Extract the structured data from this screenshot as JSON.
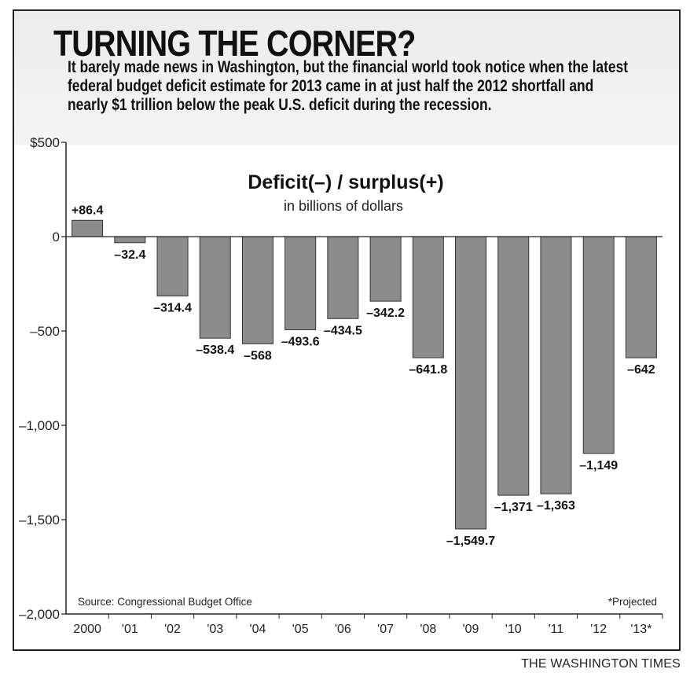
{
  "title": "TURNING THE CORNER?",
  "subtitle": "It barely made news in Washington, but the financial world took notice when the latest federal budget deficit estimate for 2013 came in at just half the 2012 shortfall and nearly $1 trillion below the peak U.S. deficit during the recession.",
  "credit": "THE WASHINGTON TIMES",
  "chart_data": {
    "type": "bar",
    "title": "Deficit(–) / surplus(+)",
    "subtitle": "in billions of dollars",
    "categories": [
      "2000",
      "'01",
      "'02",
      "'03",
      "'04",
      "'05",
      "'06",
      "'07",
      "'08",
      "'09",
      "'10",
      "'11",
      "'12",
      "'13*"
    ],
    "values": [
      86.4,
      -32.4,
      -314.4,
      -538.4,
      -568,
      -493.6,
      -434.5,
      -342.2,
      -641.8,
      -1549.7,
      -1371,
      -1363,
      -1149,
      -642
    ],
    "value_labels": [
      "+86.4",
      "–32.4",
      "–314.4",
      "–538.4",
      "–568",
      "–493.6",
      "–434.5",
      "–342.2",
      "–641.8",
      "–1,549.7",
      "–1,371",
      "–1,363",
      "–1,149",
      "–642"
    ],
    "yticks": [
      500,
      0,
      -500,
      -1000,
      -1500,
      -2000
    ],
    "ytick_labels": [
      "$500",
      "0",
      "–500",
      "–1,000",
      "–1,500",
      "–2,000"
    ],
    "ylim": [
      -2000,
      500
    ],
    "grid": false,
    "bar_color": "#8c8c8c",
    "source": "Source: Congressional Budget Office",
    "note": "*Projected"
  }
}
